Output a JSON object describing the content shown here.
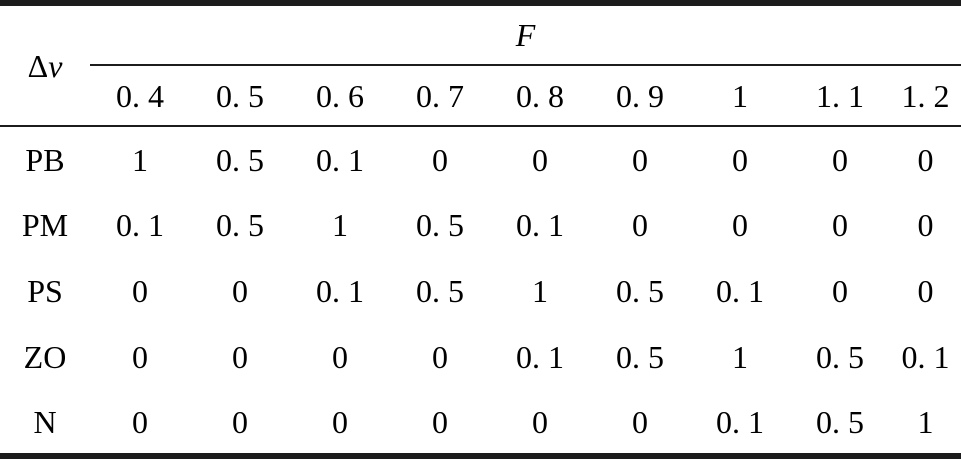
{
  "table": {
    "row_header_symbol": "Δ",
    "row_header_var": "v",
    "col_group_title": "F",
    "col_headers": [
      "0. 4",
      "0. 5",
      "0. 6",
      "0. 7",
      "0. 8",
      "0. 9",
      "1",
      "1. 1",
      "1. 2"
    ],
    "rows": [
      {
        "label": "PB",
        "values": [
          "1",
          "0. 5",
          "0. 1",
          "0",
          "0",
          "0",
          "0",
          "0",
          "0"
        ]
      },
      {
        "label": "PM",
        "values": [
          "0. 1",
          "0. 5",
          "1",
          "0. 5",
          "0. 1",
          "0",
          "0",
          "0",
          "0"
        ]
      },
      {
        "label": "PS",
        "values": [
          "0",
          "0",
          "0. 1",
          "0. 5",
          "1",
          "0. 5",
          "0. 1",
          "0",
          "0"
        ]
      },
      {
        "label": "ZO",
        "values": [
          "0",
          "0",
          "0",
          "0",
          "0. 1",
          "0. 5",
          "1",
          "0. 5",
          "0. 1"
        ]
      },
      {
        "label": "N",
        "values": [
          "0",
          "0",
          "0",
          "0",
          "0",
          "0",
          "0. 1",
          "0. 5",
          "1"
        ]
      }
    ]
  },
  "colors": {
    "rule": "#1c1c1c",
    "text": "#000000",
    "background": "#ffffff"
  }
}
